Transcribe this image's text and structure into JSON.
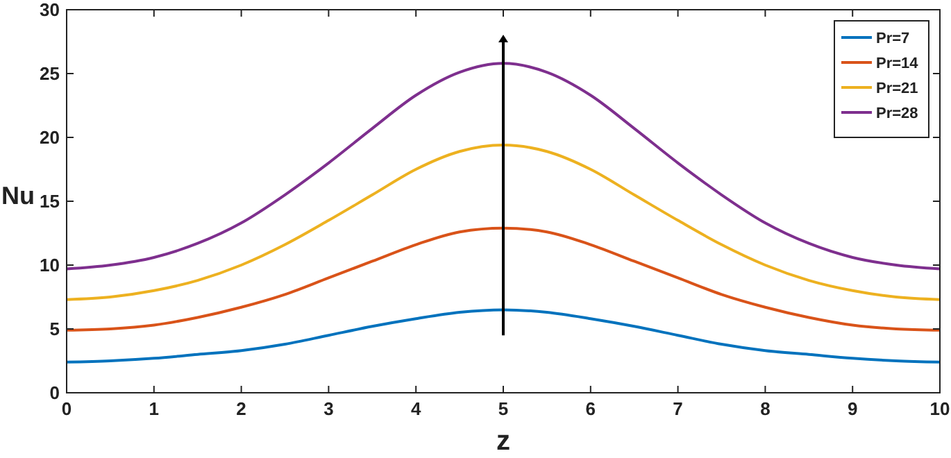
{
  "chart_data": {
    "type": "line",
    "xlabel": "z",
    "ylabel": "Nu",
    "x": [
      0,
      0.5,
      1,
      1.5,
      2,
      2.5,
      3,
      3.5,
      4,
      4.5,
      5,
      5.5,
      6,
      6.5,
      7,
      7.5,
      8,
      8.5,
      9,
      9.5,
      10
    ],
    "series": [
      {
        "name": "Pr=7",
        "color": "#0072bd",
        "values": [
          2.4,
          2.5,
          2.7,
          3.0,
          3.3,
          3.8,
          4.5,
          5.2,
          5.8,
          6.3,
          6.5,
          6.3,
          5.8,
          5.2,
          4.5,
          3.8,
          3.3,
          3.0,
          2.7,
          2.5,
          2.4
        ]
      },
      {
        "name": "Pr=14",
        "color": "#d95319",
        "values": [
          4.9,
          5.0,
          5.3,
          5.9,
          6.7,
          7.7,
          9.0,
          10.3,
          11.6,
          12.6,
          12.9,
          12.6,
          11.6,
          10.3,
          9.0,
          7.7,
          6.7,
          5.9,
          5.3,
          5.0,
          4.9
        ]
      },
      {
        "name": "Pr=21",
        "color": "#edb120",
        "values": [
          7.3,
          7.5,
          8.0,
          8.8,
          10.0,
          11.6,
          13.5,
          15.5,
          17.5,
          18.9,
          19.4,
          18.9,
          17.5,
          15.5,
          13.5,
          11.6,
          10.0,
          8.8,
          8.0,
          7.5,
          7.3
        ]
      },
      {
        "name": "Pr=28",
        "color": "#7e2f8e",
        "values": [
          9.7,
          10.0,
          10.6,
          11.7,
          13.3,
          15.5,
          18.0,
          20.7,
          23.3,
          25.1,
          25.8,
          25.1,
          23.3,
          20.7,
          18.0,
          15.5,
          13.3,
          11.7,
          10.6,
          10.0,
          9.7
        ]
      }
    ],
    "xlim": [
      0,
      10
    ],
    "xticks": [
      0,
      1,
      2,
      3,
      4,
      5,
      6,
      7,
      8,
      9,
      10
    ],
    "ylim": [
      0,
      30
    ],
    "yticks": [
      0,
      5,
      10,
      15,
      20,
      25,
      30
    ],
    "legend": "top right",
    "marker": "none",
    "line_style": "solid"
  }
}
